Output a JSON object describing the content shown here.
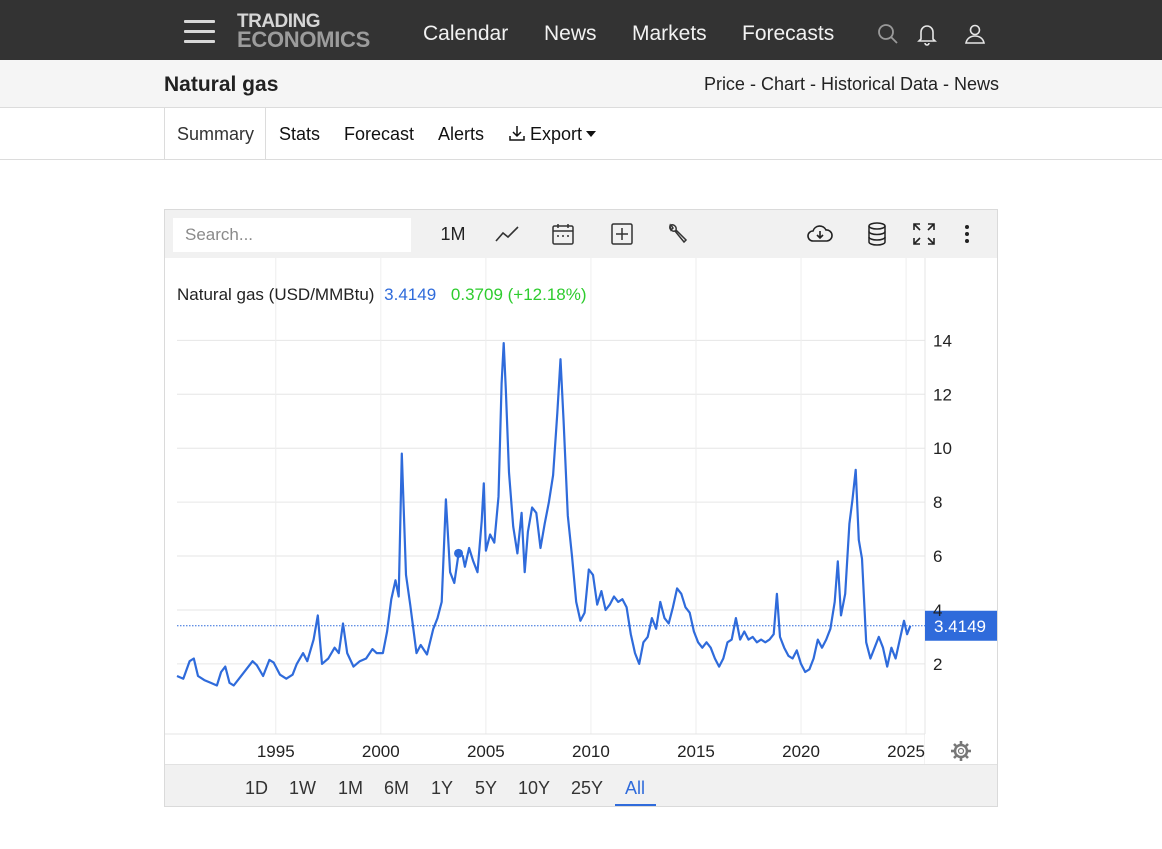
{
  "nav": {
    "logo_line1": "TRADING",
    "logo_line2": "ECONOMICS",
    "links": [
      "Calendar",
      "News",
      "Markets",
      "Forecasts"
    ],
    "icons": [
      "search-icon",
      "bell-icon",
      "user-icon"
    ]
  },
  "header": {
    "title": "Natural gas",
    "breadcrumb": "Price - Chart - Historical Data - News"
  },
  "tabs": {
    "items": [
      "Summary",
      "Stats",
      "Forecast",
      "Alerts"
    ],
    "export_label": "Export",
    "active": "Summary"
  },
  "toolbar": {
    "search_placeholder": "Search...",
    "interval_label": "1M",
    "icons": [
      "line-chart-icon",
      "calendar-icon",
      "compare-add-icon",
      "wrench-icon",
      "cloud-download-icon",
      "database-icon",
      "fullscreen-icon",
      "more-vert-icon"
    ]
  },
  "legend": {
    "series_name": "Natural gas (USD/MMBtu)",
    "last_value": "3.4149",
    "change": "0.3709 (+12.18%)"
  },
  "colors": {
    "line": "#2f6bdb",
    "change_positive": "#2ecc2e",
    "navbar": "#333333"
  },
  "range_buttons": [
    "1D",
    "1W",
    "1M",
    "6M",
    "1Y",
    "5Y",
    "10Y",
    "25Y",
    "All"
  ],
  "active_range": "All",
  "chart_data": {
    "type": "line",
    "title": "Natural gas (USD/MMBtu)",
    "xlabel": "",
    "ylabel": "",
    "y_ticks": [
      2,
      4,
      6,
      8,
      10,
      12,
      14
    ],
    "y_tick_labels": [
      "2",
      "4",
      "6",
      "8",
      "10",
      "12",
      "14"
    ],
    "x_ticks": [
      1995,
      2000,
      2005,
      2010,
      2015,
      2020,
      2025
    ],
    "x_tick_labels": [
      "1995",
      "2000",
      "2005",
      "2010",
      "2015",
      "2020",
      "2025"
    ],
    "xlim": [
      1990.3,
      2025.9
    ],
    "ylim": [
      -0.6,
      15.2
    ],
    "current_value": 3.4149,
    "current_value_label": "3.4149",
    "marker_point": [
      2003.7,
      6.1
    ],
    "grid": true,
    "series": [
      {
        "name": "Natural gas",
        "points": [
          [
            1990.3,
            1.55
          ],
          [
            1990.6,
            1.45
          ],
          [
            1990.9,
            2.1
          ],
          [
            1991.1,
            2.2
          ],
          [
            1991.3,
            1.55
          ],
          [
            1991.6,
            1.4
          ],
          [
            1991.9,
            1.3
          ],
          [
            1992.2,
            1.2
          ],
          [
            1992.4,
            1.7
          ],
          [
            1992.6,
            1.9
          ],
          [
            1992.8,
            1.3
          ],
          [
            1993.0,
            1.2
          ],
          [
            1993.3,
            1.5
          ],
          [
            1993.6,
            1.8
          ],
          [
            1993.9,
            2.1
          ],
          [
            1994.1,
            1.95
          ],
          [
            1994.4,
            1.55
          ],
          [
            1994.7,
            2.15
          ],
          [
            1994.9,
            2.05
          ],
          [
            1995.2,
            1.6
          ],
          [
            1995.5,
            1.45
          ],
          [
            1995.8,
            1.6
          ],
          [
            1996.0,
            2.0
          ],
          [
            1996.3,
            2.4
          ],
          [
            1996.5,
            2.1
          ],
          [
            1996.8,
            2.9
          ],
          [
            1997.0,
            3.8
          ],
          [
            1997.2,
            2.0
          ],
          [
            1997.5,
            2.2
          ],
          [
            1997.8,
            2.6
          ],
          [
            1998.0,
            2.4
          ],
          [
            1998.2,
            3.5
          ],
          [
            1998.4,
            2.4
          ],
          [
            1998.7,
            1.9
          ],
          [
            1999.0,
            2.1
          ],
          [
            1999.3,
            2.2
          ],
          [
            1999.6,
            2.55
          ],
          [
            1999.8,
            2.4
          ],
          [
            2000.1,
            2.4
          ],
          [
            2000.3,
            3.2
          ],
          [
            2000.5,
            4.4
          ],
          [
            2000.7,
            5.1
          ],
          [
            2000.85,
            4.5
          ],
          [
            2001.0,
            9.8
          ],
          [
            2001.2,
            5.3
          ],
          [
            2001.4,
            4.2
          ],
          [
            2001.7,
            2.4
          ],
          [
            2001.9,
            2.7
          ],
          [
            2002.2,
            2.35
          ],
          [
            2002.5,
            3.3
          ],
          [
            2002.7,
            3.7
          ],
          [
            2002.9,
            4.3
          ],
          [
            2003.1,
            8.1
          ],
          [
            2003.3,
            5.4
          ],
          [
            2003.5,
            5.0
          ],
          [
            2003.7,
            6.1
          ],
          [
            2003.9,
            6.0
          ],
          [
            2004.0,
            5.6
          ],
          [
            2004.2,
            6.3
          ],
          [
            2004.4,
            5.8
          ],
          [
            2004.6,
            5.4
          ],
          [
            2004.8,
            7.3
          ],
          [
            2004.9,
            8.7
          ],
          [
            2005.0,
            6.2
          ],
          [
            2005.2,
            6.8
          ],
          [
            2005.4,
            6.5
          ],
          [
            2005.6,
            8.2
          ],
          [
            2005.75,
            12.4
          ],
          [
            2005.85,
            13.9
          ],
          [
            2005.95,
            12.2
          ],
          [
            2006.1,
            9.1
          ],
          [
            2006.3,
            7.1
          ],
          [
            2006.5,
            6.1
          ],
          [
            2006.7,
            7.6
          ],
          [
            2006.85,
            5.4
          ],
          [
            2007.0,
            6.9
          ],
          [
            2007.2,
            7.8
          ],
          [
            2007.4,
            7.6
          ],
          [
            2007.6,
            6.3
          ],
          [
            2007.8,
            7.2
          ],
          [
            2008.0,
            8.0
          ],
          [
            2008.2,
            9.0
          ],
          [
            2008.4,
            11.3
          ],
          [
            2008.55,
            13.3
          ],
          [
            2008.7,
            11.0
          ],
          [
            2008.9,
            7.5
          ],
          [
            2009.1,
            6.0
          ],
          [
            2009.3,
            4.3
          ],
          [
            2009.5,
            3.6
          ],
          [
            2009.7,
            3.9
          ],
          [
            2009.9,
            5.5
          ],
          [
            2010.1,
            5.3
          ],
          [
            2010.3,
            4.2
          ],
          [
            2010.5,
            4.7
          ],
          [
            2010.7,
            4.0
          ],
          [
            2010.9,
            4.2
          ],
          [
            2011.1,
            4.5
          ],
          [
            2011.3,
            4.3
          ],
          [
            2011.5,
            4.4
          ],
          [
            2011.7,
            4.1
          ],
          [
            2011.9,
            3.1
          ],
          [
            2012.1,
            2.4
          ],
          [
            2012.3,
            2.0
          ],
          [
            2012.5,
            2.8
          ],
          [
            2012.7,
            3.0
          ],
          [
            2012.9,
            3.7
          ],
          [
            2013.1,
            3.3
          ],
          [
            2013.3,
            4.3
          ],
          [
            2013.5,
            3.7
          ],
          [
            2013.7,
            3.5
          ],
          [
            2013.9,
            4.1
          ],
          [
            2014.1,
            4.8
          ],
          [
            2014.3,
            4.6
          ],
          [
            2014.5,
            4.1
          ],
          [
            2014.7,
            3.9
          ],
          [
            2014.9,
            3.2
          ],
          [
            2015.1,
            2.8
          ],
          [
            2015.3,
            2.6
          ],
          [
            2015.5,
            2.8
          ],
          [
            2015.7,
            2.6
          ],
          [
            2015.9,
            2.2
          ],
          [
            2016.1,
            1.9
          ],
          [
            2016.3,
            2.2
          ],
          [
            2016.5,
            2.8
          ],
          [
            2016.7,
            2.9
          ],
          [
            2016.9,
            3.7
          ],
          [
            2017.1,
            2.9
          ],
          [
            2017.3,
            3.2
          ],
          [
            2017.5,
            2.9
          ],
          [
            2017.7,
            3.0
          ],
          [
            2017.9,
            2.8
          ],
          [
            2018.1,
            2.9
          ],
          [
            2018.3,
            2.8
          ],
          [
            2018.5,
            2.9
          ],
          [
            2018.7,
            3.1
          ],
          [
            2018.85,
            4.6
          ],
          [
            2019.0,
            3.0
          ],
          [
            2019.2,
            2.6
          ],
          [
            2019.4,
            2.3
          ],
          [
            2019.6,
            2.2
          ],
          [
            2019.8,
            2.5
          ],
          [
            2020.0,
            2.0
          ],
          [
            2020.2,
            1.7
          ],
          [
            2020.4,
            1.8
          ],
          [
            2020.6,
            2.2
          ],
          [
            2020.8,
            2.9
          ],
          [
            2021.0,
            2.6
          ],
          [
            2021.2,
            2.9
          ],
          [
            2021.4,
            3.3
          ],
          [
            2021.6,
            4.3
          ],
          [
            2021.75,
            5.8
          ],
          [
            2021.9,
            3.8
          ],
          [
            2022.1,
            4.6
          ],
          [
            2022.3,
            7.2
          ],
          [
            2022.45,
            8.1
          ],
          [
            2022.6,
            9.2
          ],
          [
            2022.75,
            6.6
          ],
          [
            2022.9,
            5.9
          ],
          [
            2023.1,
            2.8
          ],
          [
            2023.3,
            2.2
          ],
          [
            2023.5,
            2.6
          ],
          [
            2023.7,
            3.0
          ],
          [
            2023.9,
            2.6
          ],
          [
            2024.1,
            1.9
          ],
          [
            2024.3,
            2.6
          ],
          [
            2024.5,
            2.2
          ],
          [
            2024.7,
            2.9
          ],
          [
            2024.9,
            3.6
          ],
          [
            2025.05,
            3.1
          ],
          [
            2025.2,
            3.41
          ]
        ]
      }
    ]
  }
}
